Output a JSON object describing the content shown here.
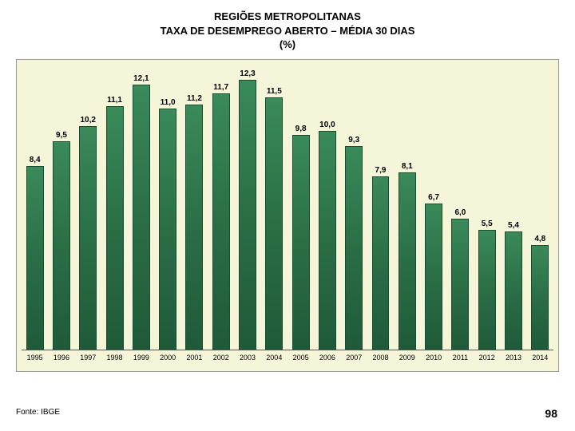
{
  "title": {
    "line1": "REGIÕES METROPOLITANAS",
    "line2": "TAXA DE DESEMPREGO ABERTO – MÉDIA 30 DIAS",
    "line3": "(%)",
    "fontsize": 13,
    "font_weight": "bold",
    "color": "#000000"
  },
  "chart": {
    "type": "bar",
    "background_color": "#f5f5da",
    "border_color": "#999999",
    "categories": [
      "1995",
      "1996",
      "1997",
      "1998",
      "1999",
      "2000",
      "2001",
      "2002",
      "2003",
      "2004",
      "2005",
      "2006",
      "2007",
      "2008",
      "2009",
      "2010",
      "2011",
      "2012",
      "2013",
      "2014"
    ],
    "values": [
      8.4,
      9.5,
      10.2,
      11.1,
      12.1,
      11.0,
      11.2,
      11.7,
      12.3,
      11.5,
      9.8,
      10.0,
      9.3,
      7.9,
      8.1,
      6.7,
      6.0,
      5.5,
      5.4,
      4.8
    ],
    "ymax": 13.0,
    "bar_color": "#2a7a4a",
    "bar_border_color": "#1a4a2f",
    "bar_width_pct": 66,
    "data_label_fontsize": 10,
    "data_label_color": "#000000",
    "x_label_fontsize": 9,
    "x_label_color": "#000000",
    "baseline_color": "#555555"
  },
  "source": {
    "text": "Fonte: IBGE",
    "fontsize": 10,
    "color": "#000000"
  },
  "page_number": {
    "text": "98",
    "fontsize": 14,
    "color": "#000000"
  }
}
